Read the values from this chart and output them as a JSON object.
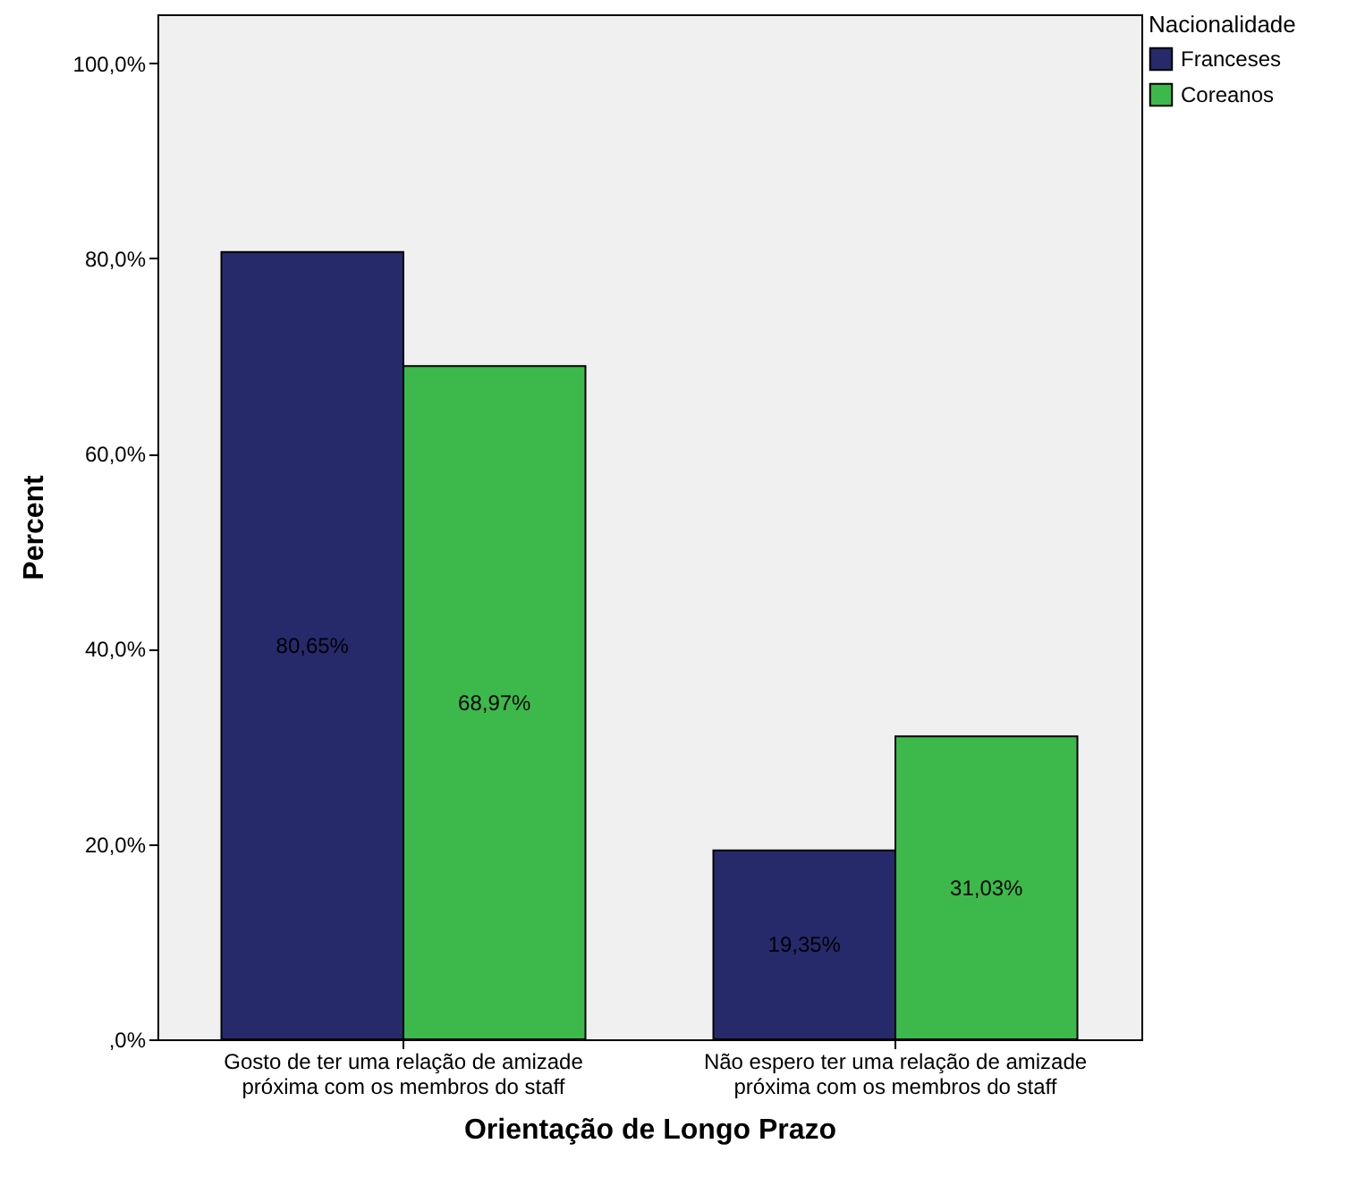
{
  "chart_data": {
    "type": "bar",
    "xlabel": "Orientação de Longo Prazo",
    "ylabel": "Percent",
    "legend_title": "Nacionalidade",
    "legend": "top right",
    "categories": [
      "Gosto de ter uma relação de amizade próxima com os membros do staff",
      "Não espero ter uma relação de amizade próxima com os membros do staff"
    ],
    "series": [
      {
        "name": "Franceses",
        "color": "#262a6b",
        "values": [
          80.65,
          19.35
        ],
        "value_labels": [
          "80,65%",
          "19,35%"
        ]
      },
      {
        "name": "Coreanos",
        "color": "#3cb94a",
        "values": [
          68.97,
          31.03
        ],
        "value_labels": [
          "68,97%",
          "31,03%"
        ]
      }
    ],
    "ylim": [
      0,
      105
    ],
    "yticks": [
      {
        "value": 0,
        "label": ",0%"
      },
      {
        "value": 20,
        "label": "20,0%"
      },
      {
        "value": 40,
        "label": "40,0%"
      },
      {
        "value": 60,
        "label": "60,0%"
      },
      {
        "value": 80,
        "label": "80,0%"
      },
      {
        "value": 100,
        "label": "100,0%"
      }
    ]
  }
}
